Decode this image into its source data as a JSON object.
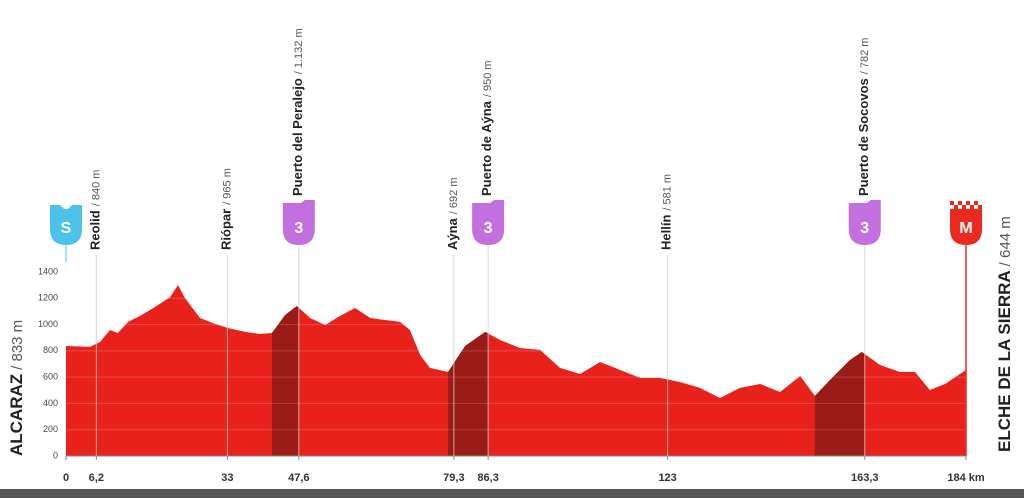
{
  "chart_data": {
    "type": "area",
    "color": "#e8221b",
    "climb_color": "#9b1c17",
    "x": [
      0,
      4.9,
      7,
      9,
      10.6,
      12.7,
      15.1,
      18.2,
      21.3,
      22.9,
      24.3,
      27.4,
      30.5,
      33.1,
      36.6,
      39.7,
      42.1,
      44.8,
      47.2,
      49.9,
      53,
      56,
      59.1,
      62.2,
      65.2,
      68.3,
      70.3,
      72.4,
      74.4,
      78.1,
      81.6,
      85.7,
      88.7,
      92.8,
      96.9,
      101,
      105.1,
      109.2,
      113.3,
      117.4,
      121.4,
      125.5,
      129.6,
      133.7,
      137.8,
      141.9,
      146,
      150.1,
      153.1,
      156.2,
      160.3,
      162.7,
      166.4,
      170.5,
      173.6,
      176.6,
      179.7,
      184
    ],
    "values": [
      837,
      830,
      868,
      959,
      936,
      1020,
      1065,
      1134,
      1210,
      1301,
      1202,
      1050,
      1004,
      974,
      944,
      928,
      936,
      1073,
      1141,
      1050,
      997,
      1065,
      1126,
      1050,
      1035,
      1020,
      959,
      769,
      670,
      639,
      837,
      944,
      883,
      822,
      807,
      670,
      624,
      715,
      654,
      594,
      594,
      563,
      518,
      441,
      518,
      548,
      487,
      609,
      457,
      578,
      731,
      791,
      693,
      639,
      639,
      502,
      548,
      654
    ],
    "xlim": [
      0,
      184
    ],
    "xticks": [
      0,
      {
        "value": 6.2,
        "label": "6,2"
      },
      33,
      {
        "value": 47.6,
        "label": "47,6"
      },
      {
        "value": 79.3,
        "label": "79,3"
      },
      {
        "value": 86.3,
        "label": "86,3"
      },
      123,
      {
        "value": 163.3,
        "label": "163,3"
      },
      {
        "value": 184,
        "label": "184 km"
      }
    ],
    "ylim": [
      0,
      1400
    ],
    "yticks": [
      0,
      200,
      400,
      600,
      800,
      1000,
      1200,
      1400
    ],
    "grid": true,
    "climbs": [
      [
        42.1,
        47.6
      ],
      [
        78.1,
        86.3
      ],
      [
        153.1,
        163.3
      ]
    ],
    "start": {
      "name": "ALCARAZ",
      "label": "/ 833 m",
      "icon": "S",
      "km": 0
    },
    "finish": {
      "name": "ELCHE DE LA SIERRA",
      "label": "/ 644 m",
      "icon": "M",
      "km": 184
    },
    "waypoints": [
      {
        "name": "Reolid",
        "label": "/ 840 m",
        "km": 6.2
      },
      {
        "name": "Riópar",
        "label": "/ 965 m",
        "km": 33
      },
      {
        "name": "Puerto del Peralejo",
        "label": "/ 1.132 m",
        "km": 47.6,
        "icon": "3"
      },
      {
        "name": "Aýna",
        "label": "/ 692 m",
        "km": 79.3
      },
      {
        "name": "Puerto de Aýna",
        "label": "/ 950 m",
        "km": 86.3,
        "icon": "3"
      },
      {
        "name": "Hellín",
        "label": "/ 581 m",
        "km": 123
      },
      {
        "name": "Puerto de Socovos",
        "label": "/ 782 m",
        "km": 163.3,
        "icon": "3"
      }
    ]
  }
}
